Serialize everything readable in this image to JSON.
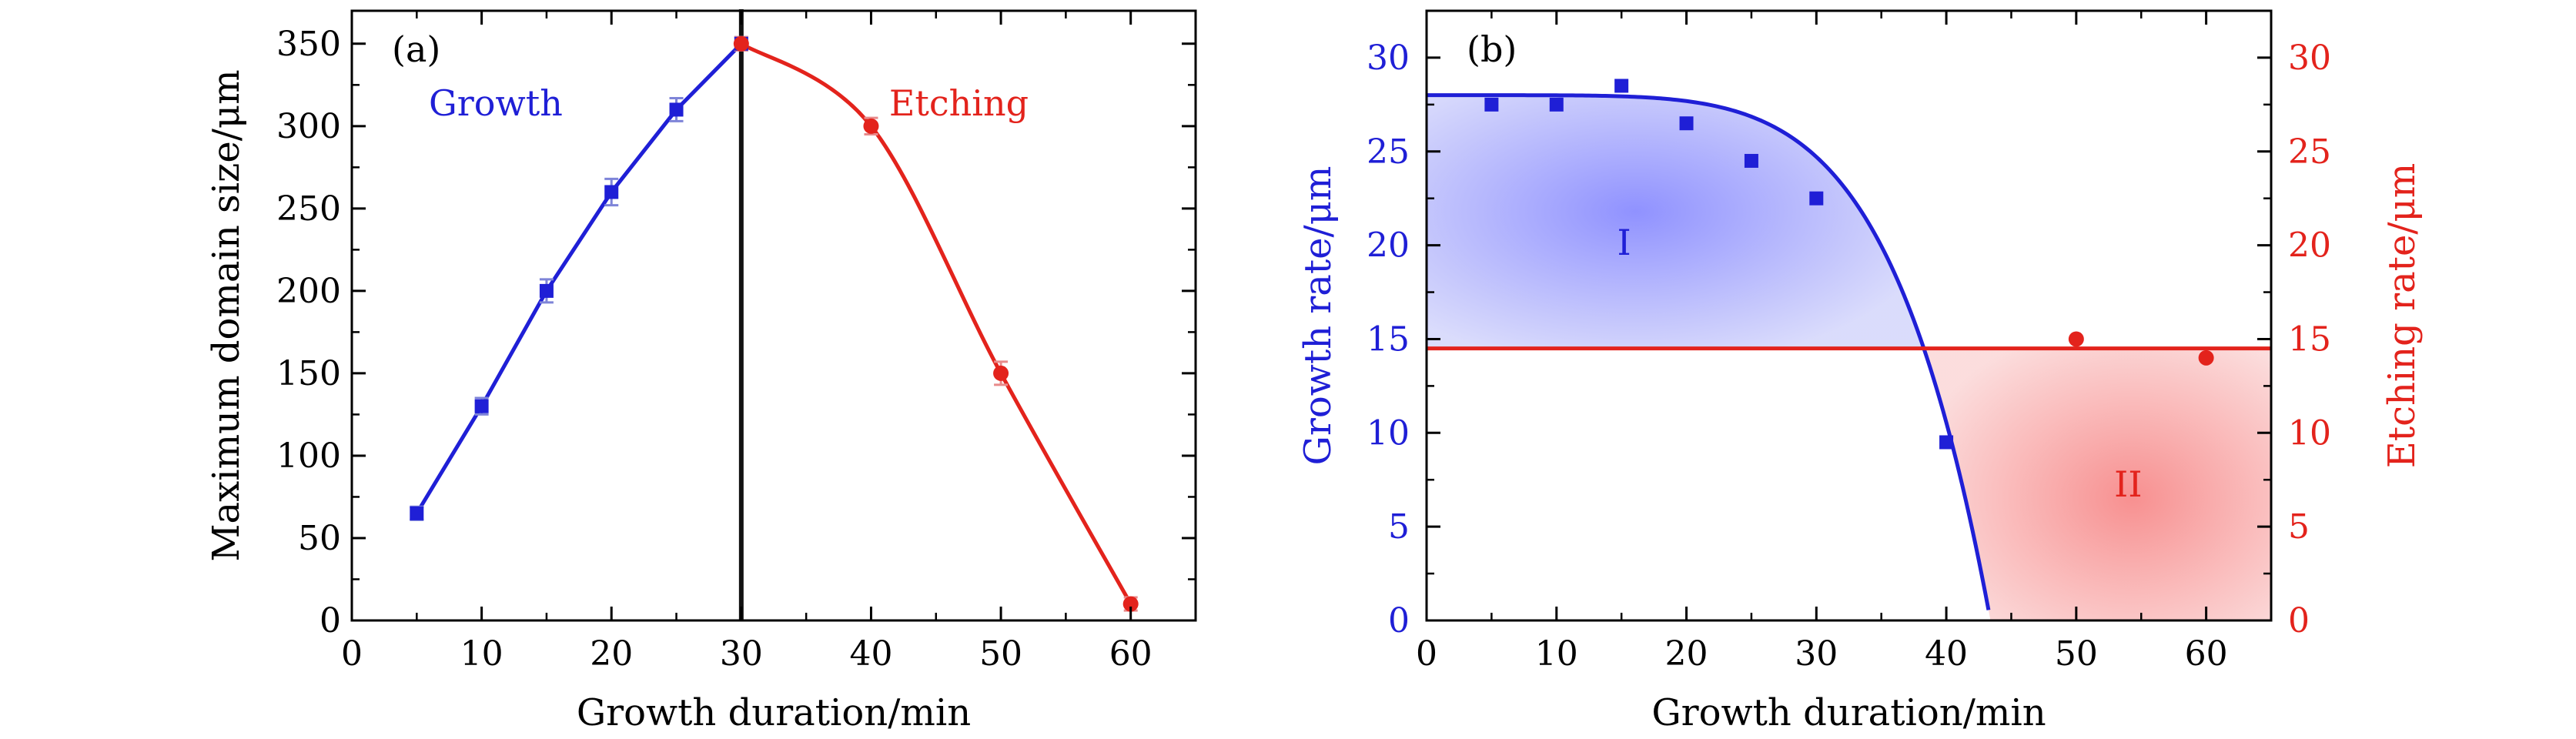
{
  "chart_data": [
    {
      "type": "line",
      "panel_label": "(a)",
      "xlabel": "Growth duration/min",
      "ylabel": "Maximum domain size/μm",
      "xlim": [
        0,
        65
      ],
      "ylim": [
        0,
        370
      ],
      "x_ticks": [
        "0",
        "10",
        "20",
        "30",
        "40",
        "50",
        "60"
      ],
      "y_ticks": [
        "0",
        "50",
        "100",
        "150",
        "200",
        "250",
        "300",
        "350"
      ],
      "vertical_line_x": 30,
      "annotations": [
        {
          "text": "Growth",
          "color": "#1f1fd6"
        },
        {
          "text": "Etching",
          "color": "#e3231c"
        }
      ],
      "series": [
        {
          "name": "Growth",
          "color": "#1f1fd6",
          "marker": "square",
          "x": [
            5,
            10,
            15,
            20,
            25,
            30
          ],
          "y": [
            65,
            130,
            200,
            260,
            310,
            350
          ],
          "error": [
            4,
            5,
            7,
            8,
            7,
            4
          ]
        },
        {
          "name": "Etching",
          "color": "#e3231c",
          "marker": "circle",
          "x": [
            30,
            40,
            50,
            60
          ],
          "y": [
            350,
            300,
            150,
            10
          ],
          "error": [
            4,
            5,
            7,
            4
          ]
        }
      ]
    },
    {
      "type": "line",
      "panel_label": "(b)",
      "xlabel": "Growth duration/min",
      "ylabel": "Growth rate/μm",
      "ylabel_right": "Etching rate/μm",
      "xlim": [
        0,
        65
      ],
      "ylim": [
        0,
        32.5
      ],
      "ylim_right": [
        0,
        32.5
      ],
      "x_ticks": [
        "0",
        "10",
        "20",
        "30",
        "40",
        "50",
        "60"
      ],
      "y_ticks": [
        "0",
        "5",
        "10",
        "15",
        "20",
        "25",
        "30"
      ],
      "y_ticks_right": [
        "0",
        "5",
        "10",
        "15",
        "20",
        "25",
        "30"
      ],
      "region_labels": [
        {
          "text": "I",
          "color": "#1f1fd6"
        },
        {
          "text": "II",
          "color": "#e3231c"
        }
      ],
      "series": [
        {
          "name": "Growth rate",
          "color": "#1f1fd6",
          "marker": "square",
          "x": [
            5,
            10,
            15,
            20,
            25,
            30,
            40
          ],
          "y": [
            27.5,
            27.5,
            28.5,
            26.5,
            24.5,
            22.5,
            9.5
          ]
        },
        {
          "name": "Etching rate",
          "color": "#e3231c",
          "marker": "circle",
          "x": [
            50,
            60
          ],
          "y": [
            15,
            14
          ]
        }
      ],
      "fit_growth": {
        "color": "#1f1fd6",
        "curve": "28*(1-(x/43.4)^5.8)"
      },
      "fit_etching": {
        "color": "#e3231c",
        "value": 14.5
      }
    }
  ]
}
